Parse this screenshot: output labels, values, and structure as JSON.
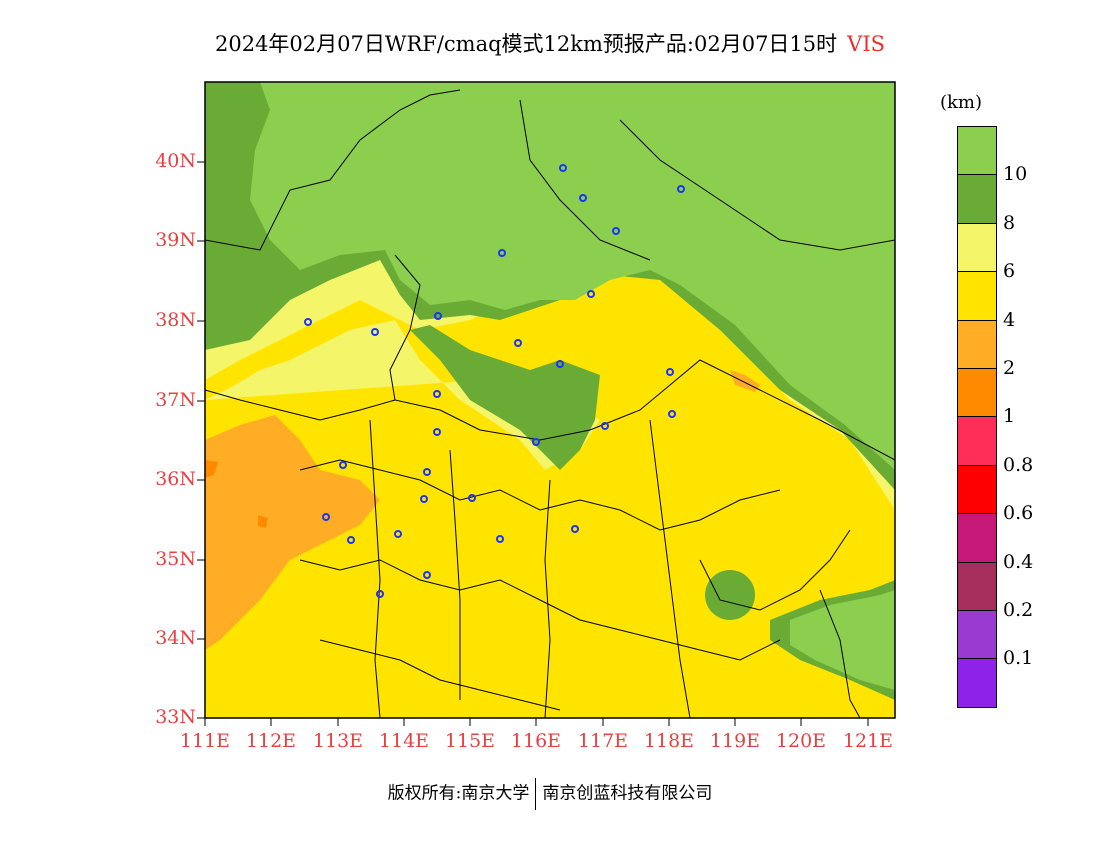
{
  "title": {
    "text": "2024年02月07日WRF/cmaq模式12km预报产品:02月07日15时",
    "variable": "VIS"
  },
  "map": {
    "lat_labels": [
      "40N",
      "39N",
      "38N",
      "37N",
      "36N",
      "35N",
      "34N",
      "33N"
    ],
    "lon_labels": [
      "111E",
      "112E",
      "113E",
      "114E",
      "115E",
      "116E",
      "117E",
      "118E",
      "119E",
      "120E",
      "121E"
    ]
  },
  "legend": {
    "unit": "(km)",
    "colors": [
      "#8e22e8",
      "#9a3ad0",
      "#a52e5a",
      "#c51878",
      "#ff0000",
      "#ff2e58",
      "#ff8a00",
      "#ffad25",
      "#ffe400",
      "#f5f56a",
      "#6aab35",
      "#8ccf4e"
    ],
    "ticks": [
      "0.1",
      "0.2",
      "0.4",
      "0.6",
      "0.8",
      "1",
      "2",
      "4",
      "6",
      "8",
      "10"
    ]
  },
  "footer": {
    "copyright": "版权所有:南京大学",
    "company": "南京创蓝科技有限公司"
  }
}
